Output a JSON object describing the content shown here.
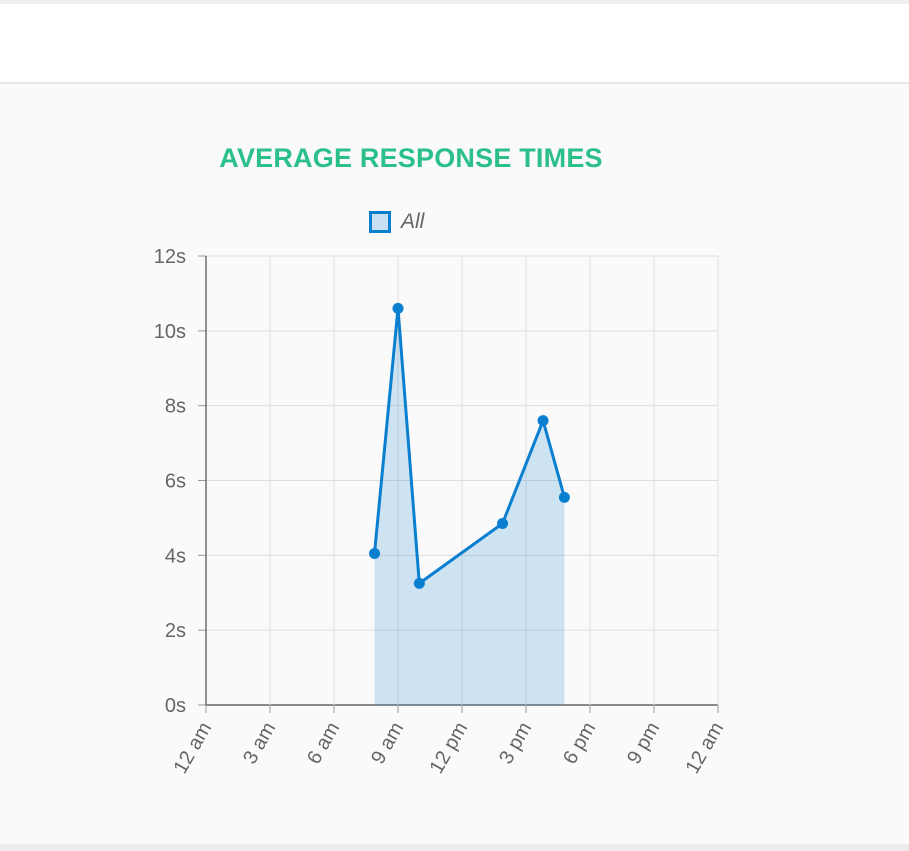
{
  "chart_data": {
    "type": "area",
    "title": "AVERAGE RESPONSE TIMES",
    "xlabel": "",
    "ylabel": "",
    "x_ticks": [
      "12 am",
      "3 am",
      "6 am",
      "9 am",
      "12 pm",
      "3 pm",
      "6 pm",
      "9 pm",
      "12 am"
    ],
    "y_ticks": [
      "0s",
      "2s",
      "4s",
      "6s",
      "8s",
      "10s",
      "12s"
    ],
    "xlim_hours": [
      0,
      24
    ],
    "ylim": [
      0,
      12
    ],
    "grid": true,
    "legend_position": "top-center",
    "series": [
      {
        "name": "All",
        "color": "#0a7fd0",
        "fill": "rgba(0, 120, 204, 0.18)",
        "points": [
          {
            "x_hour": 7.9,
            "y": 4.05
          },
          {
            "x_hour": 9.0,
            "y": 10.6
          },
          {
            "x_hour": 10.0,
            "y": 3.25
          },
          {
            "x_hour": 13.9,
            "y": 4.85
          },
          {
            "x_hour": 15.8,
            "y": 7.6
          },
          {
            "x_hour": 16.8,
            "y": 5.55
          }
        ]
      }
    ]
  }
}
